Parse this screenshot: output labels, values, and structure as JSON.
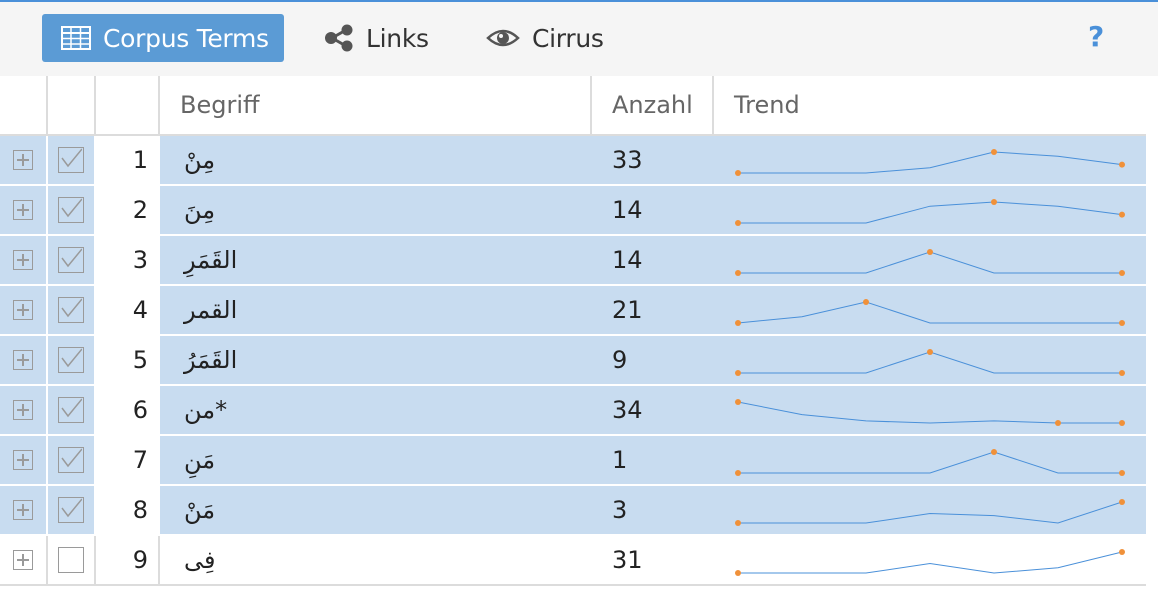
{
  "colors": {
    "accent": "#5b9bd5",
    "selected_row": "#c8dcf0",
    "spark_line": "#4a90d9",
    "spark_point": "#f0913a",
    "help": "#4a90d9"
  },
  "toolbar": {
    "tabs": [
      {
        "label": "Corpus Terms",
        "icon": "table-icon",
        "active": true
      },
      {
        "label": "Links",
        "icon": "share-icon",
        "active": false
      },
      {
        "label": "Cirrus",
        "icon": "eye-icon",
        "active": false
      }
    ],
    "help_label": "?"
  },
  "grid": {
    "columns": {
      "term": "Begriff",
      "count": "Anzahl",
      "trend": "Trend"
    },
    "rows": [
      {
        "num": "1",
        "term": "مِنْ",
        "count": "33",
        "checked": true,
        "trend": [
          0,
          0,
          0,
          0.25,
          1,
          0.8,
          0.4
        ],
        "dots": [
          0,
          4,
          6
        ]
      },
      {
        "num": "2",
        "term": "مِنَ",
        "count": "14",
        "checked": true,
        "trend": [
          0,
          0,
          0,
          0.8,
          1,
          0.8,
          0.4
        ],
        "dots": [
          0,
          4,
          6
        ]
      },
      {
        "num": "3",
        "term": "القَمَرِ",
        "count": "14",
        "checked": true,
        "trend": [
          0,
          0,
          0,
          1,
          0,
          0,
          0
        ],
        "dots": [
          0,
          3,
          6
        ]
      },
      {
        "num": "4",
        "term": "القمر",
        "count": "21",
        "checked": true,
        "trend": [
          0,
          0.3,
          1,
          0,
          0,
          0,
          0
        ],
        "dots": [
          0,
          2,
          6
        ]
      },
      {
        "num": "5",
        "term": "القَمَرُ",
        "count": "9",
        "checked": true,
        "trend": [
          0,
          0,
          0,
          1,
          0,
          0,
          0
        ],
        "dots": [
          0,
          3,
          6
        ]
      },
      {
        "num": "6",
        "term": "*من",
        "count": "34",
        "checked": true,
        "trend": [
          1,
          0.4,
          0.1,
          0,
          0.1,
          0,
          0
        ],
        "dots": [
          0,
          5,
          6
        ]
      },
      {
        "num": "7",
        "term": "مَنِ",
        "count": "1",
        "checked": true,
        "trend": [
          0,
          0,
          0,
          0,
          1,
          0,
          0
        ],
        "dots": [
          0,
          4,
          6
        ]
      },
      {
        "num": "8",
        "term": "مَنْ",
        "count": "3",
        "checked": true,
        "trend": [
          0,
          0,
          0,
          0.45,
          0.35,
          0,
          1
        ],
        "dots": [
          0,
          6
        ]
      },
      {
        "num": "9",
        "term": "فِى",
        "count": "31",
        "checked": false,
        "trend": [
          0,
          0,
          0,
          0.45,
          0,
          0.25,
          1
        ],
        "dots": [
          0,
          6
        ]
      }
    ]
  }
}
